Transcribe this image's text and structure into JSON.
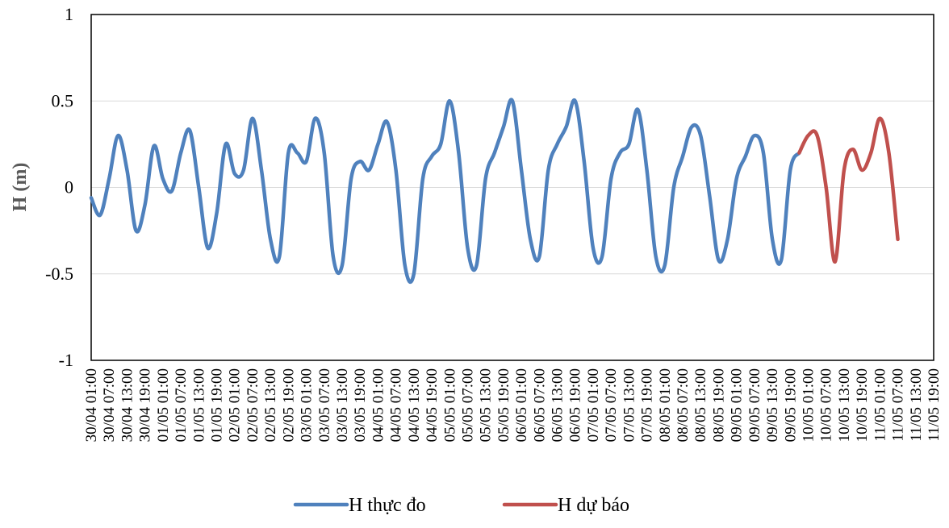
{
  "chart_data": {
    "type": "line",
    "title": "",
    "xlabel": "",
    "ylabel": "H (m)",
    "ylim": [
      -1,
      1
    ],
    "yticks": [
      {
        "value": 1,
        "label": "1"
      },
      {
        "value": 0.5,
        "label": "0.5"
      },
      {
        "value": 0,
        "label": "0"
      },
      {
        "value": -0.5,
        "label": "-0.5"
      },
      {
        "value": -1,
        "label": "-1"
      }
    ],
    "grid": true,
    "legend_position": "bottom",
    "start_label": "30/04 01:00",
    "step_hours": 6,
    "end_label": "11/05 19:00",
    "xtick_labels": [
      "30/04 01:00",
      "30/04 07:00",
      "30/04 13:00",
      "30/04 19:00",
      "01/05 01:00",
      "01/05 07:00",
      "01/05 13:00",
      "01/05 19:00",
      "02/05 01:00",
      "02/05 07:00",
      "02/05 13:00",
      "02/05 19:00",
      "03/05 01:00",
      "03/05 07:00",
      "03/05 13:00",
      "03/05 19:00",
      "04/05 01:00",
      "04/05 07:00",
      "04/05 13:00",
      "04/05 19:00",
      "05/05 01:00",
      "05/05 07:00",
      "05/05 13:00",
      "05/05 19:00",
      "06/05 01:00",
      "06/05 07:00",
      "06/05 13:00",
      "06/05 19:00",
      "07/05 01:00",
      "07/05 07:00",
      "07/05 13:00",
      "07/05 19:00",
      "08/05 01:00",
      "08/05 07:00",
      "08/05 13:00",
      "08/05 19:00",
      "09/05 01:00",
      "09/05 07:00",
      "09/05 13:00",
      "09/05 19:00",
      "10/05 01:00",
      "10/05 07:00",
      "10/05 13:00",
      "10/05 19:00",
      "11/05 01:00",
      "11/05 07:00",
      "11/05 13:00",
      "11/05 19:00"
    ],
    "series": [
      {
        "name": "H thực đo",
        "color": "#4F81BD",
        "points": [
          [
            "30/04 01:00",
            -0.06
          ],
          [
            "30/04 04:00",
            -0.16
          ],
          [
            "30/04 07:00",
            0.05
          ],
          [
            "30/04 10:00",
            0.3
          ],
          [
            "30/04 13:00",
            0.1
          ],
          [
            "30/04 16:00",
            -0.25
          ],
          [
            "30/04 19:00",
            -0.1
          ],
          [
            "30/04 22:00",
            0.24
          ],
          [
            "01/05 01:00",
            0.05
          ],
          [
            "01/05 04:00",
            -0.02
          ],
          [
            "01/05 07:00",
            0.2
          ],
          [
            "01/05 10:00",
            0.33
          ],
          [
            "01/05 13:00",
            0.0
          ],
          [
            "01/05 16:00",
            -0.35
          ],
          [
            "01/05 19:00",
            -0.15
          ],
          [
            "01/05 22:00",
            0.25
          ],
          [
            "02/05 01:00",
            0.08
          ],
          [
            "02/05 04:00",
            0.1
          ],
          [
            "02/05 07:00",
            0.4
          ],
          [
            "02/05 10:00",
            0.1
          ],
          [
            "02/05 13:00",
            -0.3
          ],
          [
            "02/05 16:00",
            -0.4
          ],
          [
            "02/05 19:00",
            0.2
          ],
          [
            "02/05 22:00",
            0.2
          ],
          [
            "03/05 01:00",
            0.15
          ],
          [
            "03/05 04:00",
            0.4
          ],
          [
            "03/05 07:00",
            0.2
          ],
          [
            "03/05 10:00",
            -0.4
          ],
          [
            "03/05 13:00",
            -0.45
          ],
          [
            "03/05 16:00",
            0.05
          ],
          [
            "03/05 19:00",
            0.15
          ],
          [
            "03/05 22:00",
            0.1
          ],
          [
            "04/05 01:00",
            0.25
          ],
          [
            "04/05 04:00",
            0.38
          ],
          [
            "04/05 07:00",
            0.1
          ],
          [
            "04/05 10:00",
            -0.45
          ],
          [
            "04/05 13:00",
            -0.5
          ],
          [
            "04/05 16:00",
            0.05
          ],
          [
            "04/05 19:00",
            0.18
          ],
          [
            "04/05 22:00",
            0.25
          ],
          [
            "05/05 01:00",
            0.5
          ],
          [
            "05/05 04:00",
            0.2
          ],
          [
            "05/05 07:00",
            -0.35
          ],
          [
            "05/05 10:00",
            -0.45
          ],
          [
            "05/05 13:00",
            0.05
          ],
          [
            "05/05 16:00",
            0.2
          ],
          [
            "05/05 19:00",
            0.35
          ],
          [
            "05/05 22:00",
            0.5
          ],
          [
            "06/05 01:00",
            0.1
          ],
          [
            "06/05 04:00",
            -0.3
          ],
          [
            "06/05 07:00",
            -0.4
          ],
          [
            "06/05 10:00",
            0.1
          ],
          [
            "06/05 13:00",
            0.25
          ],
          [
            "06/05 16:00",
            0.35
          ],
          [
            "06/05 19:00",
            0.5
          ],
          [
            "06/05 22:00",
            0.15
          ],
          [
            "07/05 01:00",
            -0.35
          ],
          [
            "07/05 04:00",
            -0.4
          ],
          [
            "07/05 07:00",
            0.05
          ],
          [
            "07/05 10:00",
            0.2
          ],
          [
            "07/05 13:00",
            0.25
          ],
          [
            "07/05 16:00",
            0.45
          ],
          [
            "07/05 19:00",
            0.1
          ],
          [
            "07/05 22:00",
            -0.4
          ],
          [
            "08/05 01:00",
            -0.45
          ],
          [
            "08/05 04:00",
            0.0
          ],
          [
            "08/05 07:00",
            0.18
          ],
          [
            "08/05 10:00",
            0.35
          ],
          [
            "08/05 13:00",
            0.3
          ],
          [
            "08/05 16:00",
            -0.05
          ],
          [
            "08/05 19:00",
            -0.42
          ],
          [
            "08/05 22:00",
            -0.3
          ],
          [
            "09/05 01:00",
            0.05
          ],
          [
            "09/05 04:00",
            0.18
          ],
          [
            "09/05 07:00",
            0.3
          ],
          [
            "09/05 10:00",
            0.2
          ],
          [
            "09/05 13:00",
            -0.3
          ],
          [
            "09/05 16:00",
            -0.42
          ],
          [
            "09/05 19:00",
            0.1
          ],
          [
            "09/05 22:00",
            0.2
          ]
        ]
      },
      {
        "name": "H dự báo",
        "color": "#C0504D",
        "points": [
          [
            "09/05 22:00",
            0.2
          ],
          [
            "10/05 01:00",
            0.3
          ],
          [
            "10/05 04:00",
            0.3
          ],
          [
            "10/05 07:00",
            0.0
          ],
          [
            "10/05 10:00",
            -0.43
          ],
          [
            "10/05 13:00",
            0.1
          ],
          [
            "10/05 16:00",
            0.22
          ],
          [
            "10/05 19:00",
            0.1
          ],
          [
            "10/05 22:00",
            0.2
          ],
          [
            "11/05 01:00",
            0.4
          ],
          [
            "11/05 04:00",
            0.2
          ],
          [
            "11/05 07:00",
            -0.3
          ]
        ]
      }
    ]
  }
}
